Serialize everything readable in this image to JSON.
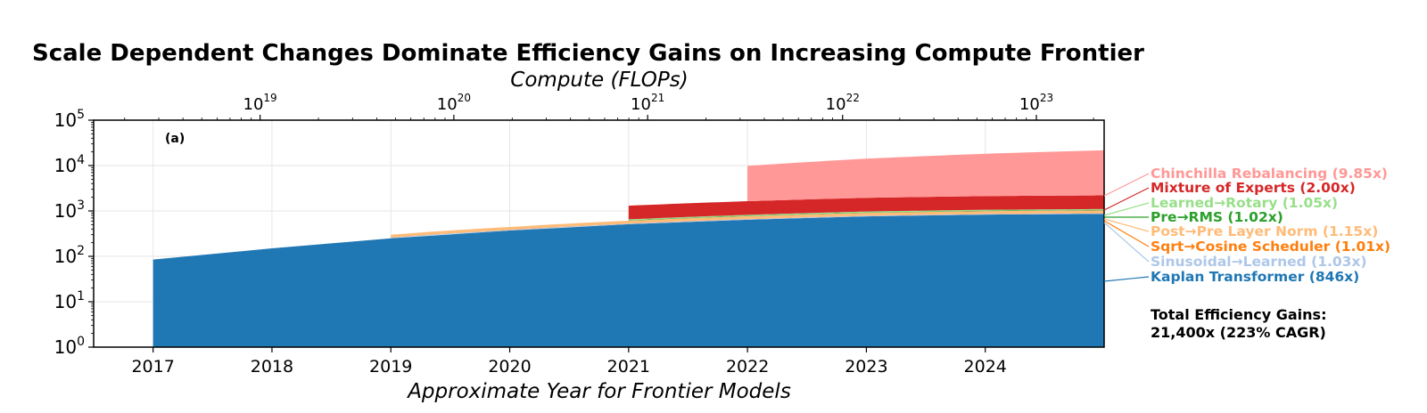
{
  "chart_data": {
    "type": "area",
    "title": "Scale Dependent Changes Dominate Efficiency Gains on Increasing Compute Frontier",
    "xlabel": "Approximate Year for Frontier Models",
    "x2label": "Compute (FLOPs)",
    "panel_label": "(a)",
    "xlim": [
      2016.5,
      2025
    ],
    "ylim": [
      1,
      100000
    ],
    "yscale": "log",
    "grid": true,
    "x_ticks": [
      2017,
      2018,
      2019,
      2020,
      2021,
      2022,
      2023,
      2024
    ],
    "y_ticks": [
      {
        "value": 1,
        "base": "10",
        "exp": "0"
      },
      {
        "value": 10,
        "base": "10",
        "exp": "1"
      },
      {
        "value": 100,
        "base": "10",
        "exp": "2"
      },
      {
        "value": 1000,
        "base": "10",
        "exp": "3"
      },
      {
        "value": 10000,
        "base": "10",
        "exp": "4"
      },
      {
        "value": 100000,
        "base": "10",
        "exp": "5"
      }
    ],
    "x2_ticks": [
      {
        "year": 2017.9,
        "base": "10",
        "exp": "19"
      },
      {
        "year": 2019.53,
        "base": "10",
        "exp": "20"
      },
      {
        "year": 2021.16,
        "base": "10",
        "exp": "21"
      },
      {
        "year": 2022.8,
        "base": "10",
        "exp": "22"
      },
      {
        "year": 2024.43,
        "base": "10",
        "exp": "23"
      }
    ],
    "series": [
      {
        "name": "Kaplan Transformer (846x)",
        "color": "#1f77b4",
        "points": [
          [
            2017,
            1
          ],
          [
            2017,
            85
          ],
          [
            2018,
            150
          ],
          [
            2019,
            250
          ],
          [
            2020,
            370
          ],
          [
            2021,
            510
          ],
          [
            2022,
            640
          ],
          [
            2023,
            760
          ],
          [
            2024,
            830
          ],
          [
            2025,
            860
          ]
        ]
      },
      {
        "name": "Sinusoidal→Learned (1.03x)",
        "color": "#aec7e8",
        "start": 2019,
        "factor": 1.03
      },
      {
        "name": "Sqrt→Cosine Scheduler (1.01x)",
        "color": "#ff7f0e",
        "start": 2019,
        "factor": 1.01
      },
      {
        "name": "Post→Pre Layer Norm (1.15x)",
        "color": "#ffbb78",
        "start": 2019,
        "factor": 1.15
      },
      {
        "name": "Pre→RMS (1.02x)",
        "color": "#2ca02c",
        "start": 2021,
        "factor": 1.02
      },
      {
        "name": "Learned→Rotary (1.05x)",
        "color": "#98df8a",
        "start": 2021,
        "factor": 1.05
      },
      {
        "name": "Mixture of Experts (2.00x)",
        "color": "#d62728",
        "start": 2021,
        "factor": 2.0
      },
      {
        "name": "Chinchilla Rebalancing (9.85x)",
        "color": "#ff9896",
        "start": 2022,
        "factor_start": 6.0,
        "factor_end": 9.85
      }
    ],
    "annotation": {
      "line1": "Total Efficiency Gains:",
      "line2": "21,400x (223% CAGR)"
    }
  }
}
